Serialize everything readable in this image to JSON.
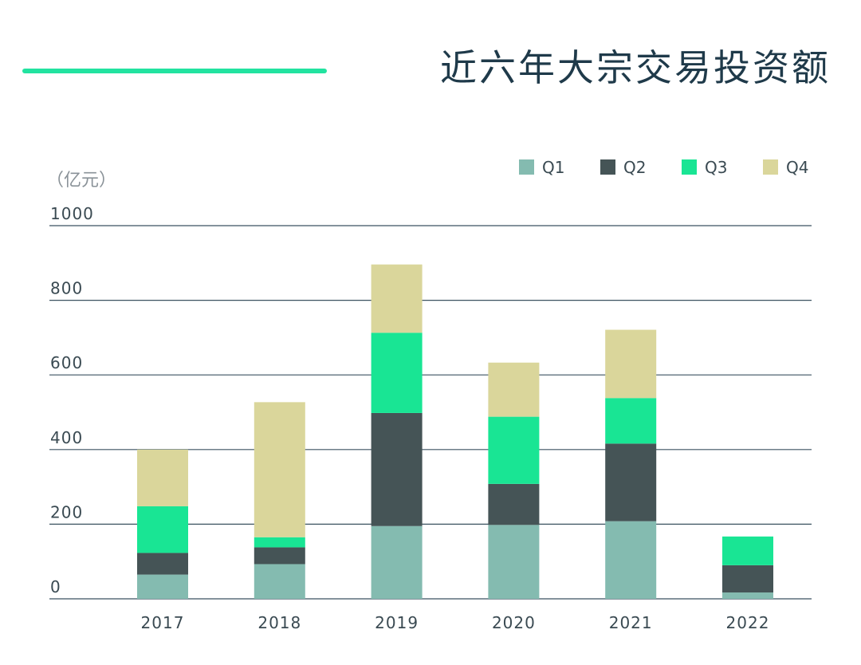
{
  "title": "近六年大宗交易投资额",
  "colors": {
    "accent": "#22e3a0",
    "title": "#1f3a4a",
    "axis_text": "#3a4a52",
    "muted_text": "#8a9298",
    "gridline": "#3b5260"
  },
  "chart_data": {
    "type": "bar",
    "stacked": true,
    "unit_label": "（亿元）",
    "categories": [
      "2017",
      "2018",
      "2019",
      "2020",
      "2021",
      "2022"
    ],
    "series": [
      {
        "name": "Q1",
        "color": "#84bbb0",
        "values": [
          65,
          93,
          195,
          198,
          208,
          17
        ]
      },
      {
        "name": "Q2",
        "color": "#455456",
        "values": [
          58,
          45,
          303,
          110,
          208,
          73
        ]
      },
      {
        "name": "Q3",
        "color": "#19e594",
        "values": [
          125,
          27,
          215,
          180,
          122,
          77
        ]
      },
      {
        "name": "Q4",
        "color": "#dad69b",
        "values": [
          152,
          362,
          183,
          145,
          183,
          0
        ]
      }
    ],
    "ylim": [
      0,
      1000
    ],
    "yticks": [
      0,
      200,
      400,
      600,
      800,
      1000
    ],
    "grid": true,
    "legend": "top-right"
  }
}
